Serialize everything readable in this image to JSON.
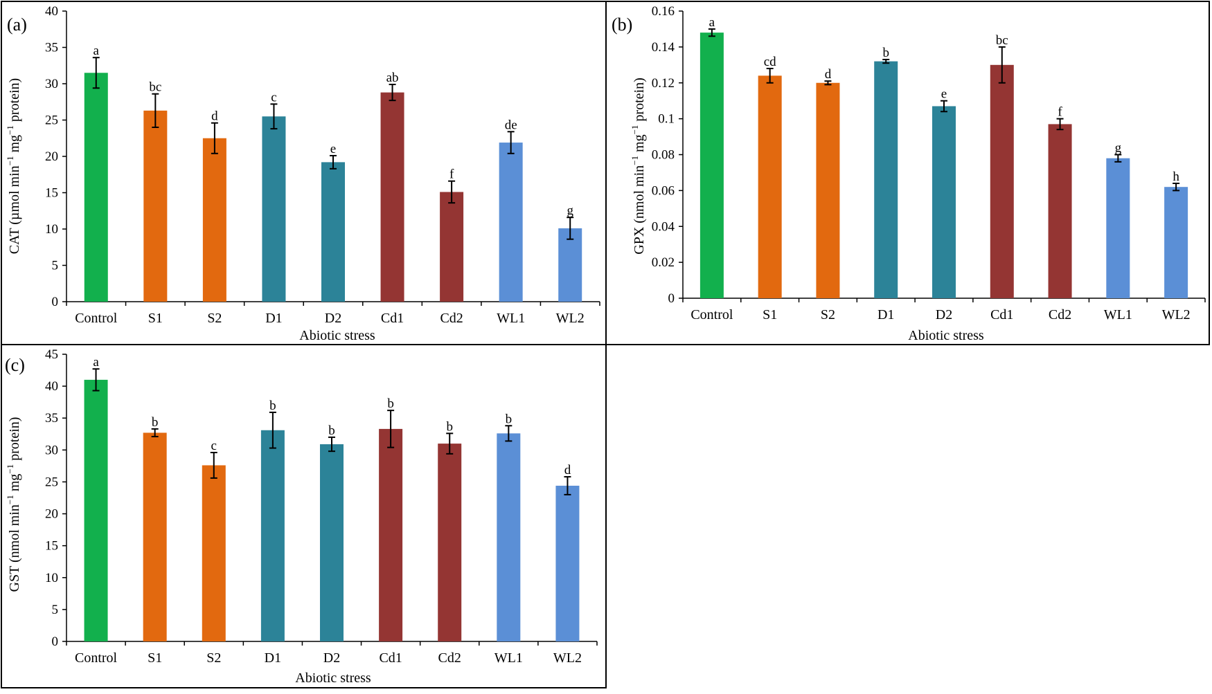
{
  "colors": {
    "control": "#12b04d",
    "salt": "#e2690f",
    "drought": "#2c8398",
    "cadmium": "#943533",
    "waterlog": "#5b8fd6",
    "axis": "#000000"
  },
  "chart_data": [
    {
      "panel": "(a)",
      "type": "bar",
      "title": "",
      "xlabel": "Abiotic stress",
      "ylabel_main": "CAT (µmol min",
      "ylabel_sup1": "−1",
      "ylabel_mid": " mg",
      "ylabel_sup2": "−1",
      "ylabel_end": " protein)",
      "ylim": [
        0,
        40
      ],
      "yticks": [
        0,
        5,
        10,
        15,
        20,
        25,
        30,
        35,
        40
      ],
      "ytick_labels": [
        "0",
        "5",
        "10",
        "15",
        "20",
        "25",
        "30",
        "35",
        "40"
      ],
      "categories": [
        "Control",
        "S1",
        "S2",
        "D1",
        "D2",
        "Cd1",
        "Cd2",
        "WL1",
        "WL2"
      ],
      "values": [
        31.5,
        26.3,
        22.5,
        25.5,
        19.2,
        28.8,
        15.1,
        21.9,
        10.1
      ],
      "errors": [
        2.1,
        2.3,
        2.1,
        1.7,
        0.9,
        1.1,
        1.5,
        1.5,
        1.5
      ],
      "letters": [
        "a",
        "bc",
        "d",
        "c",
        "e",
        "ab",
        "f",
        "de",
        "g"
      ],
      "groups": [
        "control",
        "salt",
        "salt",
        "drought",
        "drought",
        "cadmium",
        "cadmium",
        "waterlog",
        "waterlog"
      ]
    },
    {
      "panel": "(b)",
      "type": "bar",
      "title": "",
      "xlabel": "Abiotic stress",
      "ylabel_main": "GPX (nmol min",
      "ylabel_sup1": "−1",
      "ylabel_mid": " mg",
      "ylabel_sup2": "−1",
      "ylabel_end": " protein)",
      "ylim": [
        0,
        0.16
      ],
      "yticks": [
        0,
        0.02,
        0.04,
        0.06,
        0.08,
        0.1,
        0.12,
        0.14,
        0.16
      ],
      "ytick_labels": [
        "0",
        "0.02",
        "0.04",
        "0.06",
        "0.08",
        "0.1",
        "0.12",
        "0.14",
        "0.16"
      ],
      "categories": [
        "Control",
        "S1",
        "S2",
        "D1",
        "D2",
        "Cd1",
        "Cd2",
        "WL1",
        "WL2"
      ],
      "values": [
        0.148,
        0.124,
        0.12,
        0.132,
        0.107,
        0.13,
        0.097,
        0.078,
        0.062
      ],
      "errors": [
        0.002,
        0.004,
        0.001,
        0.001,
        0.003,
        0.01,
        0.003,
        0.002,
        0.002
      ],
      "letters": [
        "a",
        "cd",
        "d",
        "b",
        "e",
        "bc",
        "f",
        "g",
        "h"
      ],
      "groups": [
        "control",
        "salt",
        "salt",
        "drought",
        "drought",
        "cadmium",
        "cadmium",
        "waterlog",
        "waterlog"
      ]
    },
    {
      "panel": "(c)",
      "type": "bar",
      "title": "",
      "xlabel": "Abiotic stress",
      "ylabel_main": "GST (nmol min",
      "ylabel_sup1": "−1",
      "ylabel_mid": " mg",
      "ylabel_sup2": "−1",
      "ylabel_end": " protein)",
      "ylim": [
        0,
        45
      ],
      "yticks": [
        0,
        5,
        10,
        15,
        20,
        25,
        30,
        35,
        40,
        45
      ],
      "ytick_labels": [
        "0",
        "5",
        "10",
        "15",
        "20",
        "25",
        "30",
        "35",
        "40",
        "45"
      ],
      "categories": [
        "Control",
        "S1",
        "S2",
        "D1",
        "D2",
        "Cd1",
        "Cd2",
        "WL1",
        "WL2"
      ],
      "values": [
        41.0,
        32.7,
        27.6,
        33.1,
        30.9,
        33.3,
        31.0,
        32.6,
        24.4
      ],
      "errors": [
        1.7,
        0.6,
        2.0,
        2.8,
        1.1,
        2.9,
        1.6,
        1.2,
        1.4
      ],
      "letters": [
        "a",
        "b",
        "c",
        "b",
        "b",
        "b",
        "b",
        "b",
        "d"
      ],
      "groups": [
        "control",
        "salt",
        "salt",
        "drought",
        "drought",
        "cadmium",
        "cadmium",
        "waterlog",
        "waterlog"
      ]
    }
  ]
}
